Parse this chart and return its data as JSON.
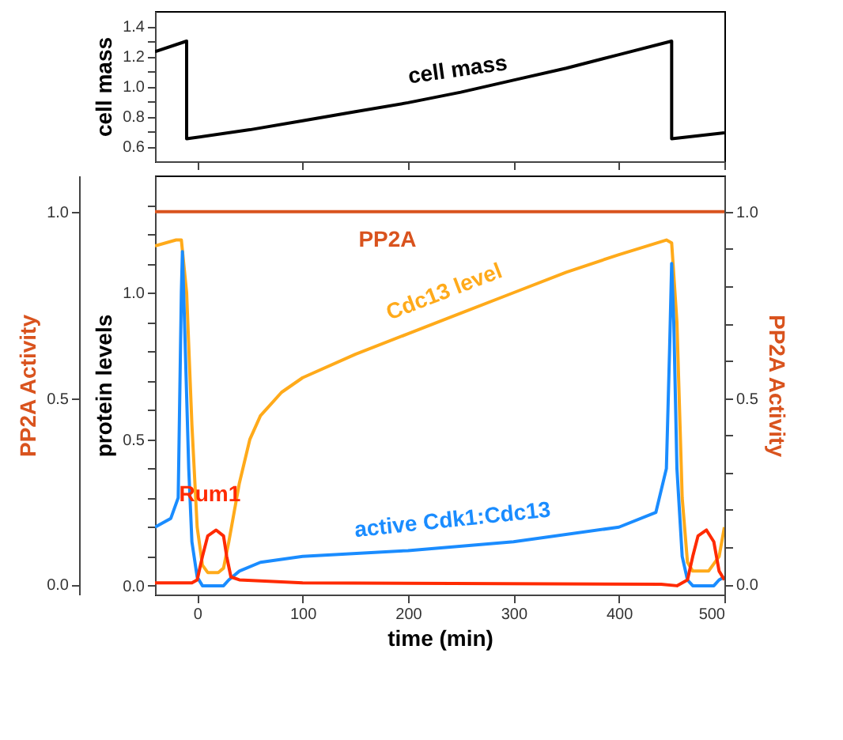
{
  "chart_data": [
    {
      "type": "line",
      "ylabel": "cell mass",
      "xlim": [
        -40,
        500
      ],
      "ylim": [
        0.5,
        1.5
      ],
      "xticks": [
        {
          "value": 0,
          "label": null
        },
        {
          "value": 100,
          "label": null
        },
        {
          "value": 200,
          "label": null
        },
        {
          "value": 300,
          "label": null
        },
        {
          "value": 400,
          "label": null
        },
        {
          "value": 500,
          "label": null
        }
      ],
      "yticks": [
        0.6,
        {
          "value": 0.7,
          "label": null
        },
        0.8,
        {
          "value": 0.9,
          "label": null
        },
        {
          "value": 1.0,
          "label": "1.0"
        },
        {
          "value": 1.1,
          "label": null
        },
        1.2,
        {
          "value": 1.3,
          "label": null
        },
        1.4
      ],
      "tick_labels": "y",
      "grid": false,
      "marker": "none",
      "line_style": "solid",
      "series": [
        {
          "name": "cell mass",
          "color": "#000000",
          "x": [
            -40,
            -10,
            -10,
            50,
            100,
            150,
            200,
            250,
            300,
            350,
            400,
            450,
            450,
            500
          ],
          "values": [
            1.23,
            1.3,
            0.65,
            0.71,
            0.77,
            0.83,
            0.89,
            0.96,
            1.04,
            1.12,
            1.21,
            1.3,
            0.65,
            0.69
          ]
        }
      ]
    },
    {
      "type": "line",
      "xlabel": "time (min)",
      "ylabel": "protein levels",
      "y2label": "PP2A Activity",
      "y3label": "PP2A Activity",
      "xlim": [
        -40,
        500
      ],
      "ylim": [
        -0.03,
        1.4
      ],
      "y2lim": [
        -0.027,
        1.097
      ],
      "y3lim": [
        -0.027,
        1.097
      ],
      "xticks": [
        0,
        100,
        200,
        300,
        400,
        500
      ],
      "yticks": [
        {
          "value": 0,
          "label": "0.0"
        },
        {
          "value": 0.1,
          "label": null
        },
        {
          "value": 0.2,
          "label": null
        },
        {
          "value": 0.3,
          "label": null
        },
        {
          "value": 0.4,
          "label": null
        },
        0.5,
        {
          "value": 0.6,
          "label": null
        },
        {
          "value": 0.7,
          "label": null
        },
        {
          "value": 0.8,
          "label": null
        },
        {
          "value": 0.9,
          "label": null
        },
        {
          "value": 1,
          "label": "1.0"
        },
        {
          "value": 1.1,
          "label": null
        },
        {
          "value": 1.2,
          "label": null
        },
        {
          "value": 1.3,
          "label": null
        }
      ],
      "y2ticks": [
        {
          "value": 0,
          "label": "0.0"
        },
        {
          "value": 0.1,
          "label": null
        },
        {
          "value": 0.2,
          "label": null
        },
        {
          "value": 0.3,
          "label": null
        },
        {
          "value": 0.4,
          "label": null
        },
        0.5,
        {
          "value": 0.6,
          "label": null
        },
        {
          "value": 0.7,
          "label": null
        },
        {
          "value": 0.8,
          "label": null
        },
        {
          "value": 0.9,
          "label": null
        },
        {
          "value": 1,
          "label": "1.0"
        }
      ],
      "y3ticks": [
        {
          "value": 0,
          "label": "0.0"
        },
        0.5,
        {
          "value": 1,
          "label": "1.0"
        }
      ],
      "grid": false,
      "marker": "none",
      "line_style": "solid",
      "series": [
        {
          "name": "PP2A",
          "color": "#d9531e",
          "axis": "y2",
          "x": [
            -40,
            500
          ],
          "values": [
            1.0,
            1.0
          ]
        },
        {
          "name": "Cdc13 level",
          "color": "#ffaa1a",
          "x": [
            -40,
            -20,
            -15,
            -10,
            -5,
            0,
            5,
            10,
            20,
            25,
            30,
            40,
            50,
            60,
            80,
            100,
            150,
            200,
            250,
            300,
            350,
            400,
            445,
            450,
            455,
            460,
            465,
            470,
            485,
            495,
            500
          ],
          "values": [
            1.16,
            1.18,
            1.18,
            1.0,
            0.55,
            0.2,
            0.07,
            0.045,
            0.045,
            0.06,
            0.15,
            0.35,
            0.5,
            0.58,
            0.66,
            0.71,
            0.79,
            0.86,
            0.93,
            1.0,
            1.07,
            1.13,
            1.18,
            1.17,
            0.9,
            0.3,
            0.08,
            0.05,
            0.05,
            0.1,
            0.2
          ]
        },
        {
          "name": "active Cdk1:Cdc13",
          "color": "#1a8cff",
          "x": [
            -40,
            -25,
            -18,
            -15,
            -14,
            -12,
            -8,
            -5,
            0,
            5,
            25,
            30,
            40,
            60,
            100,
            200,
            300,
            400,
            435,
            445,
            448,
            450,
            452,
            455,
            460,
            465,
            470,
            490,
            495,
            500
          ],
          "values": [
            0.2,
            0.23,
            0.3,
            1.0,
            1.14,
            0.9,
            0.4,
            0.15,
            0.03,
            0.0,
            0.0,
            0.02,
            0.05,
            0.08,
            0.1,
            0.12,
            0.15,
            0.2,
            0.25,
            0.4,
            0.8,
            1.1,
            0.9,
            0.4,
            0.1,
            0.02,
            0.0,
            0.0,
            0.02,
            0.03
          ]
        },
        {
          "name": "Rum1",
          "color": "#ff2a00",
          "x": [
            -40,
            -5,
            0,
            5,
            10,
            18,
            25,
            28,
            32,
            40,
            100,
            440,
            455,
            465,
            470,
            475,
            483,
            490,
            495,
            500
          ],
          "values": [
            0.01,
            0.01,
            0.02,
            0.1,
            0.17,
            0.19,
            0.17,
            0.1,
            0.03,
            0.02,
            0.01,
            0.005,
            0.0,
            0.02,
            0.1,
            0.17,
            0.19,
            0.15,
            0.05,
            0.02
          ]
        }
      ]
    }
  ]
}
